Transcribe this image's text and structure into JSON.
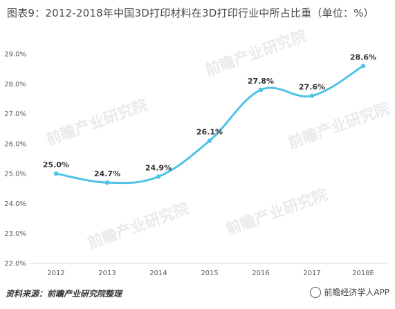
{
  "chart_data": {
    "type": "line",
    "title": "图表9：2012-2018年中国3D打印材料在3D打印行业中所占比重（单位：%）",
    "categories": [
      "2012",
      "2013",
      "2014",
      "2015",
      "2016",
      "2017",
      "2018E"
    ],
    "series": [
      {
        "values": [
          25.0,
          24.7,
          24.9,
          26.1,
          27.8,
          27.6,
          28.6
        ],
        "labels": [
          "25.0%",
          "24.7%",
          "24.9%",
          "26.1%",
          "27.8%",
          "27.6%",
          "28.6%"
        ]
      }
    ],
    "ylim": [
      22.0,
      29.0
    ],
    "yticks": [
      "22.0%",
      "23.0%",
      "24.0%",
      "25.0%",
      "26.0%",
      "27.0%",
      "28.0%",
      "29.0%"
    ],
    "grid": false,
    "line_color": "#4fc3e6"
  },
  "source": "资料来源：前瞻产业研究院整理",
  "brand": "前瞻经济学人APP",
  "watermark": "前瞻产业研究院"
}
